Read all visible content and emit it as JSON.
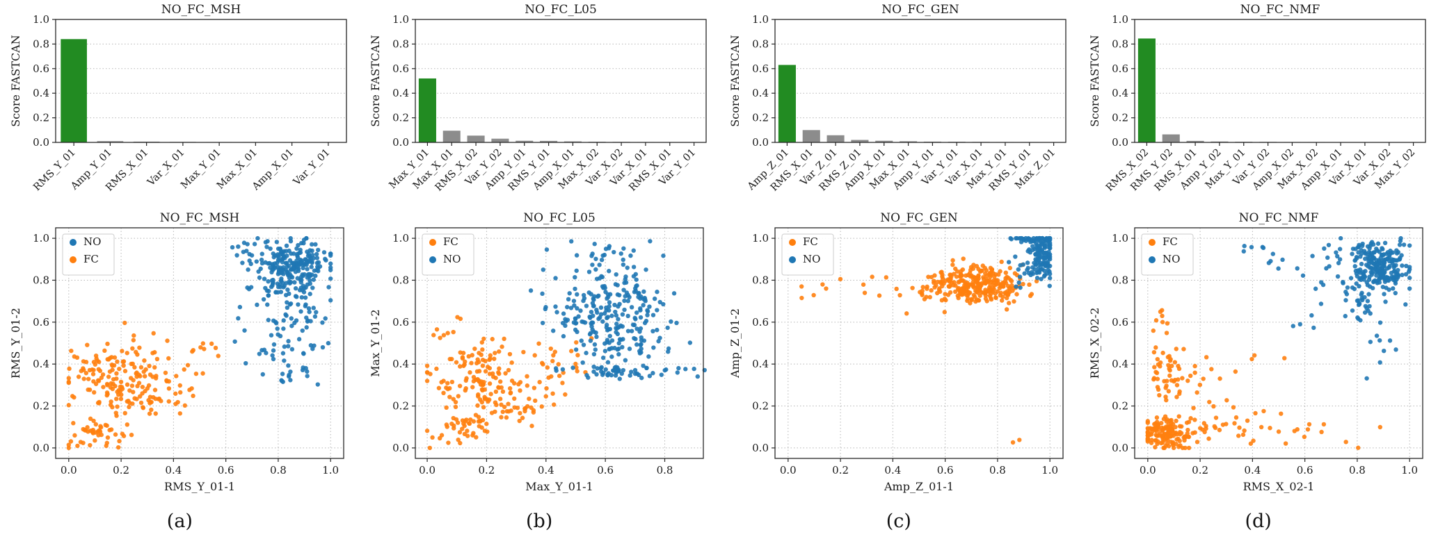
{
  "figure": {
    "captions": [
      "(a)",
      "(b)",
      "(c)",
      "(d)"
    ],
    "colors": {
      "bar_primary": "#228B22",
      "bar_secondary": "#8c8c8c",
      "series_no": "#1f77b4",
      "series_fc": "#ff7f0e",
      "grid": "#b5b5b5",
      "axis": "#262626",
      "text": "#1a1a1a"
    }
  },
  "chart_data": [
    {
      "type": "bar",
      "title": "NO_FC_MSH",
      "ylabel": "Score FASTCAN",
      "ylim": [
        0,
        1.0
      ],
      "yticks": [
        0.0,
        0.2,
        0.4,
        0.6,
        0.8,
        1.0
      ],
      "categories": [
        "RMS_Y_01",
        "Amp_Y_01",
        "RMS_X_01",
        "Var_X_01",
        "Max_Y_01",
        "Max_X_01",
        "Amp_X_01",
        "Var_Y_01"
      ],
      "values": [
        0.84,
        0.01,
        0.006,
        0.004,
        0.003,
        0.003,
        0.002,
        0.002
      ]
    },
    {
      "type": "bar",
      "title": "NO_FC_L05",
      "ylabel": "Score FASTCAN",
      "ylim": [
        0,
        1.0
      ],
      "yticks": [
        0.0,
        0.2,
        0.4,
        0.6,
        0.8,
        1.0
      ],
      "categories": [
        "Max_Y_01",
        "Max_X_01",
        "RMS_X_02",
        "Var_Y_02",
        "Amp_Y_01",
        "RMS_Y_01",
        "Amp_X_01",
        "Max_X_02",
        "Var_X_02",
        "Var_X_01",
        "RMS_X_01",
        "Var_Y_01"
      ],
      "values": [
        0.52,
        0.095,
        0.055,
        0.03,
        0.013,
        0.012,
        0.008,
        0.005,
        0.004,
        0.003,
        0.002,
        0.002
      ]
    },
    {
      "type": "bar",
      "title": "NO_FC_GEN",
      "ylabel": "Score FASTCAN",
      "ylim": [
        0,
        1.0
      ],
      "yticks": [
        0.0,
        0.2,
        0.4,
        0.6,
        0.8,
        1.0
      ],
      "categories": [
        "Amp_Z_01",
        "RMS_X_01",
        "Var_Z_01",
        "RMS_Z_01",
        "Amp_X_01",
        "Max_X_01",
        "Amp_Y_01",
        "Var_Y_01",
        "Var_X_01",
        "Max_Y_01",
        "RMS_Y_01",
        "Max_Z_01"
      ],
      "values": [
        0.63,
        0.1,
        0.058,
        0.02,
        0.013,
        0.009,
        0.006,
        0.005,
        0.004,
        0.003,
        0.003,
        0.002
      ]
    },
    {
      "type": "bar",
      "title": "NO_FC_NMF",
      "ylabel": "Score FASTCAN",
      "ylim": [
        0,
        1.0
      ],
      "yticks": [
        0.0,
        0.2,
        0.4,
        0.6,
        0.8,
        1.0
      ],
      "categories": [
        "RMS_X_02",
        "RMS_Y_02",
        "RMS_X_01",
        "Amp_Y_02",
        "Max_Y_01",
        "Var_Y_02",
        "Amp_X_02",
        "Max_X_02",
        "Amp_X_01",
        "Var_X_01",
        "Var_X_02",
        "Max_Y_02"
      ],
      "values": [
        0.845,
        0.065,
        0.012,
        0.007,
        0.005,
        0.004,
        0.003,
        0.003,
        0.002,
        0.002,
        0.002,
        0.001
      ]
    },
    {
      "type": "scatter",
      "title": "NO_FC_MSH",
      "xlabel": "RMS_Y_01-1",
      "ylabel": "RMS_Y_01-2",
      "xlim": [
        -0.05,
        1.05
      ],
      "ylim": [
        -0.05,
        1.05
      ],
      "xticks": [
        0.0,
        0.2,
        0.4,
        0.6,
        0.8,
        1.0
      ],
      "yticks": [
        0.0,
        0.2,
        0.4,
        0.6,
        0.8,
        1.0
      ],
      "series": [
        {
          "name": "NO",
          "color": "#1f77b4",
          "clusters": [
            {
              "cx": 0.86,
              "cy": 0.88,
              "sx": 0.075,
              "sy": 0.06,
              "n": 200
            },
            {
              "cx": 0.8,
              "cy": 0.78,
              "sx": 0.06,
              "sy": 0.05,
              "n": 50
            },
            {
              "cx": 0.85,
              "cy": 0.62,
              "sx": 0.08,
              "sy": 0.06,
              "n": 45
            },
            {
              "cx": 0.82,
              "cy": 0.42,
              "sx": 0.08,
              "sy": 0.06,
              "n": 35
            },
            {
              "cx": 0.7,
              "cy": 0.93,
              "sx": 0.04,
              "sy": 0.04,
              "n": 15
            }
          ]
        },
        {
          "name": "FC",
          "color": "#ff7f0e",
          "clusters": [
            {
              "cx": 0.16,
              "cy": 0.34,
              "sx": 0.09,
              "sy": 0.09,
              "n": 110
            },
            {
              "cx": 0.27,
              "cy": 0.24,
              "sx": 0.11,
              "sy": 0.05,
              "n": 55
            },
            {
              "cx": 0.11,
              "cy": 0.08,
              "sx": 0.06,
              "sy": 0.04,
              "n": 45
            },
            {
              "cx": 0.36,
              "cy": 0.4,
              "sx": 0.09,
              "sy": 0.07,
              "n": 25
            },
            {
              "cx": 0.5,
              "cy": 0.47,
              "sx": 0.04,
              "sy": 0.03,
              "n": 6
            }
          ]
        }
      ]
    },
    {
      "type": "scatter",
      "title": "NO_FC_L05",
      "xlabel": "Max_Y_01-1",
      "ylabel": "Max_Y_01-2",
      "xlim": [
        -0.04,
        0.93
      ],
      "ylim": [
        -0.05,
        1.05
      ],
      "xticks": [
        0.0,
        0.2,
        0.4,
        0.6,
        0.8
      ],
      "yticks": [
        0.0,
        0.2,
        0.4,
        0.6,
        0.8,
        1.0
      ],
      "series": [
        {
          "name": "FC",
          "color": "#ff7f0e",
          "clusters": [
            {
              "cx": 0.17,
              "cy": 0.35,
              "sx": 0.08,
              "sy": 0.08,
              "n": 110
            },
            {
              "cx": 0.28,
              "cy": 0.22,
              "sx": 0.09,
              "sy": 0.06,
              "n": 60
            },
            {
              "cx": 0.12,
              "cy": 0.09,
              "sx": 0.06,
              "sy": 0.04,
              "n": 40
            },
            {
              "cx": 0.42,
              "cy": 0.44,
              "sx": 0.06,
              "sy": 0.06,
              "n": 20
            },
            {
              "cx": 0.05,
              "cy": 0.52,
              "sx": 0.03,
              "sy": 0.04,
              "n": 8
            }
          ]
        },
        {
          "name": "NO",
          "color": "#1f77b4",
          "clusters": [
            {
              "cx": 0.62,
              "cy": 0.66,
              "sx": 0.09,
              "sy": 0.1,
              "n": 190
            },
            {
              "cx": 0.7,
              "cy": 0.5,
              "sx": 0.08,
              "sy": 0.05,
              "n": 40
            },
            {
              "cx": 0.66,
              "cy": 0.37,
              "sx": 0.11,
              "sy": 0.015,
              "n": 55
            },
            {
              "cx": 0.6,
              "cy": 0.94,
              "sx": 0.07,
              "sy": 0.04,
              "n": 25
            },
            {
              "cx": 0.48,
              "cy": 0.6,
              "sx": 0.04,
              "sy": 0.05,
              "n": 15
            }
          ]
        }
      ]
    },
    {
      "type": "scatter",
      "title": "NO_FC_GEN",
      "xlabel": "Amp_Z_01-1",
      "ylabel": "Amp_Z_01-2",
      "xlim": [
        -0.05,
        1.05
      ],
      "ylim": [
        -0.05,
        1.05
      ],
      "xticks": [
        0.0,
        0.2,
        0.4,
        0.6,
        0.8,
        1.0
      ],
      "yticks": [
        0.0,
        0.2,
        0.4,
        0.6,
        0.8,
        1.0
      ],
      "series": [
        {
          "name": "FC",
          "color": "#ff7f0e",
          "clusters": [
            {
              "cx": 0.74,
              "cy": 0.78,
              "sx": 0.08,
              "sy": 0.045,
              "n": 250
            },
            {
              "cx": 0.57,
              "cy": 0.76,
              "sx": 0.06,
              "sy": 0.05,
              "n": 40
            },
            {
              "cx": 0.33,
              "cy": 0.78,
              "sx": 0.08,
              "sy": 0.04,
              "n": 6
            },
            {
              "cx": 0.1,
              "cy": 0.76,
              "sx": 0.06,
              "sy": 0.04,
              "n": 6
            },
            {
              "cx": 0.88,
              "cy": 0.04,
              "sx": 0.015,
              "sy": 0.015,
              "n": 2
            }
          ]
        },
        {
          "name": "NO",
          "color": "#1f77b4",
          "clusters": [
            {
              "cx": 0.975,
              "cy": 0.91,
              "sx": 0.025,
              "sy": 0.055,
              "n": 110
            },
            {
              "cx": 0.94,
              "cy": 0.995,
              "sx": 0.045,
              "sy": 0.01,
              "n": 50
            },
            {
              "cx": 0.9,
              "cy": 0.84,
              "sx": 0.03,
              "sy": 0.04,
              "n": 15
            }
          ]
        }
      ]
    },
    {
      "type": "scatter",
      "title": "NO_FC_NMF",
      "xlabel": "RMS_X_02-1",
      "ylabel": "RMS_X_02-2",
      "xlim": [
        -0.05,
        1.05
      ],
      "ylim": [
        -0.05,
        1.05
      ],
      "xticks": [
        0.0,
        0.2,
        0.4,
        0.6,
        0.8,
        1.0
      ],
      "yticks": [
        0.0,
        0.2,
        0.4,
        0.6,
        0.8,
        1.0
      ],
      "series": [
        {
          "name": "FC",
          "color": "#ff7f0e",
          "clusters": [
            {
              "cx": 0.07,
              "cy": 0.07,
              "sx": 0.05,
              "sy": 0.04,
              "n": 140
            },
            {
              "cx": 0.07,
              "cy": 0.38,
              "sx": 0.035,
              "sy": 0.07,
              "n": 45
            },
            {
              "cx": 0.28,
              "cy": 0.1,
              "sx": 0.09,
              "sy": 0.05,
              "n": 28
            },
            {
              "cx": 0.6,
              "cy": 0.08,
              "sx": 0.14,
              "sy": 0.04,
              "n": 18
            },
            {
              "cx": 0.24,
              "cy": 0.33,
              "sx": 0.07,
              "sy": 0.07,
              "n": 14
            },
            {
              "cx": 0.05,
              "cy": 0.58,
              "sx": 0.025,
              "sy": 0.05,
              "n": 8
            },
            {
              "cx": 0.45,
              "cy": 0.45,
              "sx": 0.03,
              "sy": 0.03,
              "n": 3
            }
          ]
        },
        {
          "name": "NO",
          "color": "#1f77b4",
          "clusters": [
            {
              "cx": 0.885,
              "cy": 0.87,
              "sx": 0.055,
              "sy": 0.06,
              "n": 230
            },
            {
              "cx": 0.82,
              "cy": 0.72,
              "sx": 0.05,
              "sy": 0.06,
              "n": 35
            },
            {
              "cx": 0.7,
              "cy": 0.85,
              "sx": 0.05,
              "sy": 0.08,
              "n": 18
            },
            {
              "cx": 0.42,
              "cy": 0.93,
              "sx": 0.05,
              "sy": 0.05,
              "n": 10
            },
            {
              "cx": 0.9,
              "cy": 0.48,
              "sx": 0.04,
              "sy": 0.08,
              "n": 8
            },
            {
              "cx": 0.6,
              "cy": 0.6,
              "sx": 0.03,
              "sy": 0.04,
              "n": 4
            }
          ]
        }
      ]
    }
  ]
}
